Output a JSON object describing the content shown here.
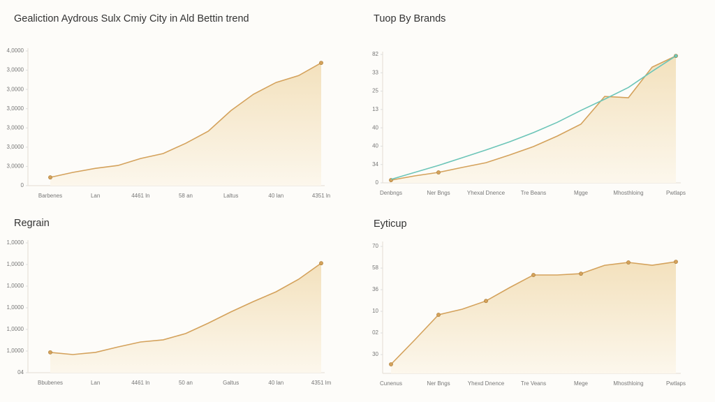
{
  "chart_data": [
    {
      "type": "area",
      "title": "Gealiction Aydrous Sulx Cmiy City in Ald Bettin trend",
      "categories": [
        "Barbenes",
        null,
        "Lan",
        null,
        "4461 ln",
        null,
        "58 an",
        null,
        "Laltus",
        null,
        "40 lan",
        null,
        "4351 ln"
      ],
      "series": [
        {
          "name": null,
          "color": "#d4a25c",
          "fill": true,
          "values": [
            0.43,
            0.69,
            0.9,
            1.05,
            1.41,
            1.67,
            2.2,
            2.83,
            3.9,
            4.75,
            5.36,
            5.72,
            6.38
          ]
        }
      ],
      "markers": "ends",
      "ylim": [
        0,
        7
      ],
      "yticks": [
        0,
        {
          "value": 1,
          "label": "3,0000"
        },
        {
          "value": 2,
          "label": "3,0000"
        },
        {
          "value": 3,
          "label": "3,0000"
        },
        {
          "value": 4,
          "label": "3,0000"
        },
        {
          "value": 5,
          "label": "3,0000"
        },
        {
          "value": 6,
          "label": "3,0000"
        },
        {
          "value": 7,
          "label": "4,0000"
        }
      ]
    },
    {
      "type": "area",
      "title": "Tuop By Brands",
      "categories": [
        "Denbngs",
        null,
        "Ner Bngs",
        null,
        "Yhexal Dnence",
        null,
        "Tre Beans",
        null,
        "Mgge",
        null,
        "Mhosthloing",
        null,
        "Pwtlaps"
      ],
      "series": [
        {
          "name": null,
          "color": "#d4a25c",
          "fill": true,
          "values": [
            0.15,
            0.38,
            0.57,
            0.84,
            1.1,
            1.52,
            1.98,
            2.55,
            3.2,
            4.71,
            4.64,
            6.31,
            6.92
          ]
        },
        {
          "name": null,
          "color": "#6cc5b8",
          "fill": false,
          "values": [
            0.19,
            0.57,
            0.95,
            1.37,
            1.79,
            2.24,
            2.74,
            3.3,
            3.95,
            4.56,
            5.2,
            6.08,
            6.92
          ]
        }
      ],
      "markers": "labeled-first",
      "ylim": [
        0,
        7
      ],
      "yticks": [
        0,
        {
          "value": 1,
          "label": "34"
        },
        {
          "value": 2,
          "label": "40"
        },
        {
          "value": 3,
          "label": "40"
        },
        {
          "value": 4,
          "label": "13"
        },
        {
          "value": 5,
          "label": "25"
        },
        {
          "value": 6,
          "label": "33"
        },
        {
          "value": 7,
          "label": "82"
        }
      ]
    },
    {
      "type": "area",
      "title": "Regrain",
      "categories": [
        "Bbubenes",
        null,
        "Lan",
        null,
        "4461 ln",
        null,
        "50 an",
        null,
        "Galtus",
        null,
        "40 lan",
        null,
        "4351 lm"
      ],
      "series": [
        {
          "name": null,
          "color": "#d4a25c",
          "fill": true,
          "values": [
            0.94,
            0.84,
            0.94,
            1.19,
            1.42,
            1.52,
            1.81,
            2.29,
            2.81,
            3.29,
            3.74,
            4.32,
            5.06
          ]
        }
      ],
      "markers": "ends",
      "ylim": [
        0,
        6
      ],
      "yticks": [
        {
          "value": 0,
          "label": "04"
        },
        {
          "value": 1,
          "label": "1,0000"
        },
        {
          "value": 2,
          "label": "1,0000"
        },
        {
          "value": 3,
          "label": "1,0000"
        },
        {
          "value": 4,
          "label": "1,0000"
        },
        {
          "value": 5,
          "label": "1,0000"
        },
        {
          "value": 6,
          "label": "1,0000"
        }
      ]
    },
    {
      "type": "area",
      "title": "Eyticup",
      "categories": [
        "Cunenus",
        null,
        "Ner Bngs",
        null,
        "Yhexd Dnence",
        null,
        "Tre Veans",
        null,
        "Mege",
        null,
        "Mhosthloing",
        null,
        "Pwtlaps"
      ],
      "series": [
        {
          "name": null,
          "color": "#d4a25c",
          "fill": true,
          "values": [
            -0.45,
            0.68,
            1.84,
            2.1,
            2.48,
            3.1,
            3.68,
            3.68,
            3.74,
            4.13,
            4.26,
            4.13,
            4.29
          ]
        }
      ],
      "markers": "labeled",
      "ylim": [
        -0.87,
        5.1
      ],
      "yticks": [
        {
          "value": 0,
          "label": "30"
        },
        {
          "value": 1,
          "label": "02"
        },
        {
          "value": 2,
          "label": "10"
        },
        {
          "value": 3,
          "label": "36"
        },
        {
          "value": 4,
          "label": "58"
        },
        {
          "value": 5,
          "label": "70"
        }
      ]
    }
  ]
}
